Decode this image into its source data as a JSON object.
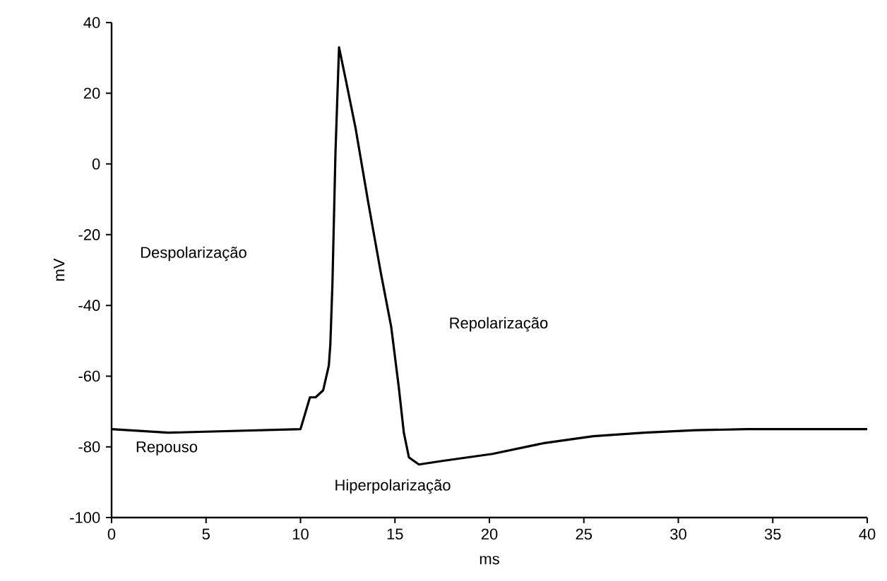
{
  "chart_data": {
    "type": "line",
    "xlabel": "ms",
    "ylabel": "mV",
    "x": [
      0,
      3,
      10,
      10.5,
      10.8,
      11.2,
      11.5,
      11.58,
      11.69,
      11.85,
      12.04,
      12.39,
      12.92,
      13.59,
      14.26,
      14.8,
      15.2,
      15.47,
      15.74,
      16.27,
      17.5,
      20.16,
      22.84,
      25.5,
      28.2,
      30.9,
      33.6,
      36.2,
      40
    ],
    "series": [
      {
        "color": "#000000",
        "values": [
          -75,
          -76,
          -75,
          -66,
          -66,
          -64,
          -57,
          -51,
          -34,
          3,
          33,
          24,
          10,
          -11,
          -31,
          -46,
          -63,
          -76,
          -83,
          -85,
          -84,
          -82,
          -79,
          -77,
          -76,
          -75.3,
          -75,
          -75,
          -75
        ]
      }
    ],
    "xlim": [
      0,
      40
    ],
    "ylim": [
      -100,
      40
    ],
    "xticks": [
      0,
      5,
      10,
      15,
      20,
      25,
      30,
      35,
      40
    ],
    "yticks": [
      -100,
      -80,
      -60,
      -40,
      -20,
      0,
      20,
      40
    ],
    "grid": false,
    "marker": "none",
    "line_style": "solid",
    "annotations": [
      "Despolarização",
      "Repolarização",
      "Repouso",
      "Hiperpolarização"
    ]
  }
}
